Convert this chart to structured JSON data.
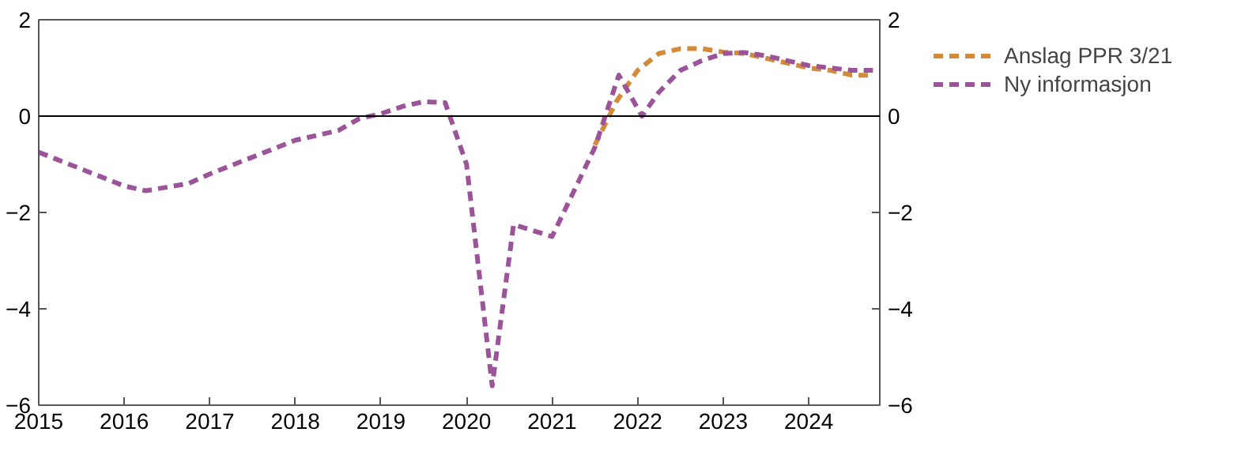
{
  "chart_data": {
    "type": "line",
    "line_style": "dashed",
    "marker": "none",
    "grid": false,
    "legend": "right",
    "xlim": [
      2015,
      2024.83
    ],
    "xticks": [
      2015,
      2016,
      2017,
      2018,
      2019,
      2020,
      2021,
      2022,
      2023,
      2024
    ],
    "ylim": [
      -6,
      2
    ],
    "yticks": [
      {
        "value": -6,
        "label": "−6"
      },
      {
        "value": -4,
        "label": "−4"
      },
      {
        "value": -2,
        "label": "−2"
      },
      0,
      2
    ],
    "y2lim": [
      -6,
      2
    ],
    "y2ticks": [
      {
        "value": -6,
        "label": "−6"
      },
      {
        "value": -4,
        "label": "−4"
      },
      {
        "value": -2,
        "label": "−2"
      },
      0,
      2
    ],
    "ref_lines": [
      {
        "axis": "y",
        "value": 0,
        "color": "#000000",
        "line_style": "solid"
      }
    ],
    "series": [
      {
        "name": "Anslag PPR 3/21",
        "color": "#d38b3a",
        "x": [
          2021.5,
          2021.75,
          2022.0,
          2022.25,
          2022.5,
          2022.75,
          2023.0,
          2023.25,
          2023.5,
          2023.75,
          2024.0,
          2024.25,
          2024.5,
          2024.75
        ],
        "values": [
          -0.6,
          0.3,
          0.95,
          1.3,
          1.4,
          1.4,
          1.33,
          1.3,
          1.2,
          1.1,
          1.0,
          0.95,
          0.85,
          0.85
        ]
      },
      {
        "name": "Ny informasjon",
        "color": "#9b549a",
        "x": [
          2015.0,
          2015.5,
          2016.0,
          2016.25,
          2016.75,
          2017.0,
          2017.5,
          2018.0,
          2018.5,
          2018.75,
          2019.0,
          2019.25,
          2019.5,
          2019.75,
          2020.0,
          2020.3,
          2020.55,
          2021.0,
          2021.5,
          2021.78,
          2022.05,
          2022.25,
          2022.5,
          2022.75,
          2023.0,
          2023.25,
          2023.5,
          2023.75,
          2024.0,
          2024.25,
          2024.5,
          2024.75
        ],
        "values": [
          -0.75,
          -1.1,
          -1.45,
          -1.55,
          -1.4,
          -1.2,
          -0.85,
          -0.5,
          -0.3,
          -0.05,
          0.05,
          0.2,
          0.3,
          0.28,
          -1.0,
          -5.6,
          -2.25,
          -2.5,
          -0.65,
          0.85,
          0.0,
          0.5,
          0.95,
          1.15,
          1.3,
          1.32,
          1.25,
          1.15,
          1.05,
          1.0,
          0.95,
          0.95
        ]
      }
    ]
  }
}
